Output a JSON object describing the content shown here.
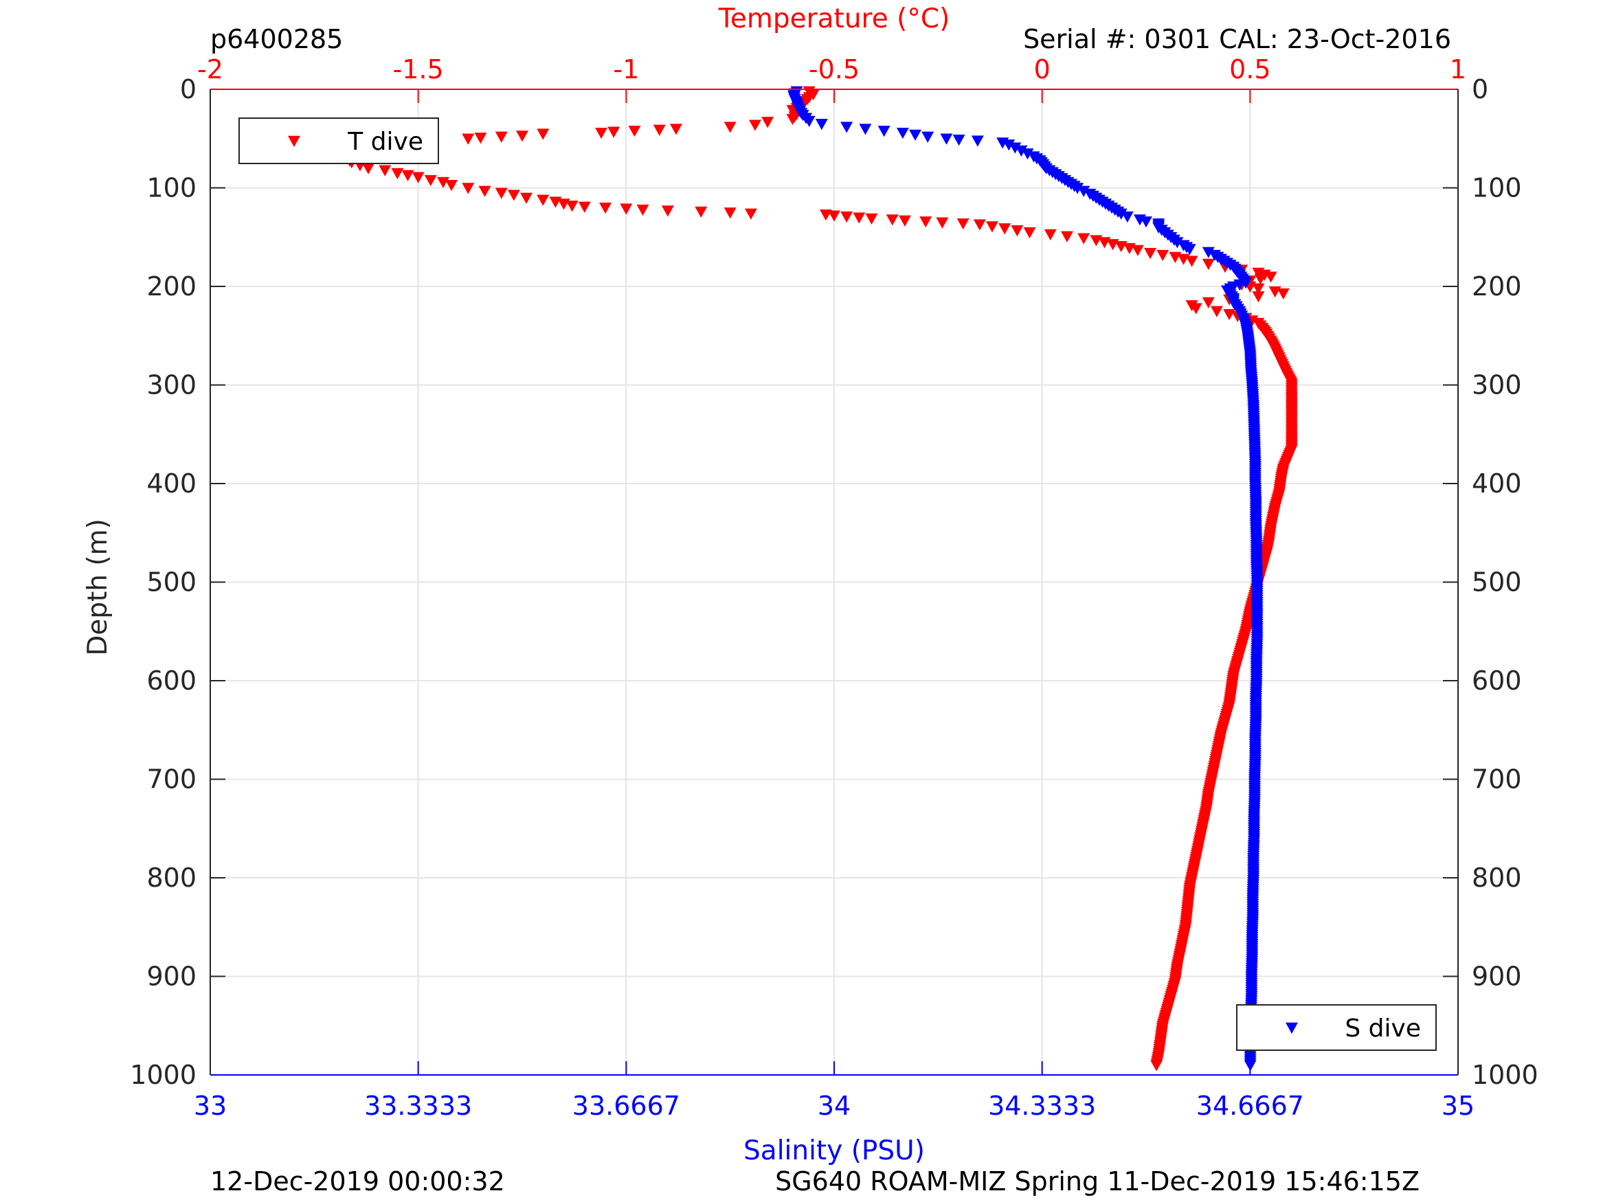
{
  "header": {
    "profile_id": "p6400285",
    "serial_cal": "Serial #: 0301  CAL: 23-Oct-2016"
  },
  "footer": {
    "left": "12-Dec-2019 00:00:32",
    "right": "SG640 ROAM-MIZ Spring 11-Dec-2019 15:46:15Z"
  },
  "colors": {
    "temperature": "#ff0000",
    "salinity": "#0000ff",
    "axis": "#262626",
    "grid": "#e6e6e6",
    "grid_temperature": "#ffd6d6"
  },
  "chart_data": {
    "type": "scatter",
    "grid": true,
    "y_axis": {
      "label": "Depth (m)",
      "range": [
        0,
        1000
      ],
      "reversed": true,
      "ticks": [
        0,
        100,
        200,
        300,
        400,
        500,
        600,
        700,
        800,
        900,
        1000
      ],
      "tick_labels": [
        "0",
        "100",
        "200",
        "300",
        "400",
        "500",
        "600",
        "700",
        "800",
        "900",
        "1000"
      ]
    },
    "x_top": {
      "label": "Temperature (°C)",
      "range": [
        -2,
        1
      ],
      "ticks": [
        -2,
        -1.5,
        -1,
        -0.5,
        0,
        0.5,
        1
      ],
      "tick_labels": [
        "-2",
        "-1.5",
        "-1",
        "-0.5",
        "0",
        "0.5",
        "1"
      ]
    },
    "x_bottom": {
      "label": "Salinity (PSU)",
      "range": [
        33,
        35
      ],
      "ticks": [
        33,
        33.3333,
        33.6667,
        34,
        34.3333,
        34.6667,
        35
      ],
      "tick_labels": [
        "33",
        "33.3333",
        "33.6667",
        "34",
        "34.3333",
        "34.6667",
        "35"
      ]
    },
    "legends": [
      {
        "series": "T dive",
        "placement": "top-left"
      },
      {
        "series": "S dive",
        "placement": "bottom-right"
      }
    ],
    "series": [
      {
        "name": "T dive",
        "axis": "x_top",
        "marker": "triangle-down",
        "points": [
          [
            -0.56,
            2
          ],
          [
            -0.55,
            5
          ],
          [
            -0.56,
            8
          ],
          [
            -0.57,
            12
          ],
          [
            -0.58,
            17
          ],
          [
            -0.6,
            21
          ],
          [
            -0.59,
            25
          ],
          [
            -0.6,
            30
          ],
          [
            -0.66,
            33
          ],
          [
            -0.69,
            36
          ],
          [
            -0.75,
            38
          ],
          [
            -0.88,
            40
          ],
          [
            -0.92,
            41
          ],
          [
            -0.98,
            42
          ],
          [
            -1.03,
            43
          ],
          [
            -1.06,
            44
          ],
          [
            -1.2,
            45
          ],
          [
            -1.25,
            47
          ],
          [
            -1.3,
            48
          ],
          [
            -1.35,
            49
          ],
          [
            -1.38,
            50
          ],
          [
            -1.63,
            52
          ],
          [
            -1.65,
            53
          ],
          [
            -1.66,
            54
          ],
          [
            -1.68,
            55
          ],
          [
            -1.68,
            58
          ],
          [
            -1.69,
            62
          ],
          [
            -1.68,
            66
          ],
          [
            -1.67,
            70
          ],
          [
            -1.66,
            74
          ],
          [
            -1.64,
            77
          ],
          [
            -1.62,
            80
          ],
          [
            -1.58,
            82
          ],
          [
            -1.55,
            85
          ],
          [
            -1.5,
            89
          ],
          [
            -1.47,
            92
          ],
          [
            -1.44,
            94
          ],
          [
            -1.42,
            97
          ],
          [
            -1.38,
            100
          ],
          [
            -1.34,
            103
          ],
          [
            -1.3,
            105
          ],
          [
            -1.27,
            107
          ],
          [
            -1.24,
            110
          ],
          [
            -1.2,
            112
          ],
          [
            -1.17,
            114
          ],
          [
            -1.15,
            116
          ],
          [
            -1.13,
            118
          ],
          [
            -1.1,
            119
          ],
          [
            -1.05,
            120
          ],
          [
            -1.0,
            121
          ],
          [
            -0.96,
            122
          ],
          [
            -0.9,
            123
          ],
          [
            -0.82,
            124
          ],
          [
            -0.75,
            125
          ],
          [
            -0.7,
            126
          ],
          [
            -0.52,
            127
          ],
          [
            -0.5,
            128
          ],
          [
            -0.47,
            129
          ],
          [
            -0.44,
            130
          ],
          [
            -0.41,
            131
          ],
          [
            -0.36,
            132
          ],
          [
            -0.33,
            133
          ],
          [
            -0.28,
            134
          ],
          [
            -0.24,
            135
          ],
          [
            -0.19,
            136
          ],
          [
            -0.15,
            137
          ],
          [
            -0.12,
            139
          ],
          [
            -0.09,
            141
          ],
          [
            -0.06,
            143
          ],
          [
            -0.03,
            145
          ],
          [
            0.02,
            147
          ],
          [
            0.06,
            149
          ],
          [
            0.1,
            151
          ],
          [
            0.13,
            153
          ],
          [
            0.15,
            155
          ],
          [
            0.17,
            157
          ],
          [
            0.19,
            159
          ],
          [
            0.21,
            161
          ],
          [
            0.23,
            163
          ],
          [
            0.26,
            166
          ],
          [
            0.32,
            170
          ],
          [
            0.36,
            174
          ],
          [
            0.4,
            177
          ],
          [
            0.44,
            180
          ],
          [
            0.48,
            183
          ],
          [
            0.52,
            186
          ],
          [
            0.55,
            190
          ],
          [
            0.5,
            194
          ],
          [
            0.48,
            198
          ],
          [
            0.52,
            202
          ],
          [
            0.56,
            205
          ],
          [
            0.58,
            207
          ],
          [
            0.52,
            210
          ],
          [
            0.45,
            213
          ],
          [
            0.4,
            216
          ],
          [
            0.36,
            219
          ],
          [
            0.37,
            222
          ],
          [
            0.42,
            225
          ],
          [
            0.45,
            228
          ],
          [
            0.49,
            232
          ],
          [
            0.52,
            237
          ],
          [
            0.53,
            242
          ],
          [
            0.54,
            248
          ],
          [
            0.55,
            255
          ],
          [
            0.56,
            263
          ],
          [
            0.57,
            272
          ],
          [
            0.58,
            281
          ],
          [
            0.59,
            290
          ],
          [
            0.6,
            298
          ],
          [
            0.6,
            310
          ],
          [
            0.6,
            325
          ],
          [
            0.6,
            340
          ],
          [
            0.6,
            355
          ],
          [
            0.6,
            365
          ],
          [
            0.59,
            375
          ],
          [
            0.58,
            385
          ],
          [
            0.575,
            395
          ],
          [
            0.57,
            410
          ],
          [
            0.56,
            425
          ],
          [
            0.55,
            445
          ],
          [
            0.545,
            460
          ],
          [
            0.54,
            470
          ],
          [
            0.53,
            485
          ],
          [
            0.52,
            500
          ],
          [
            0.51,
            515
          ],
          [
            0.5,
            530
          ],
          [
            0.49,
            550
          ],
          [
            0.48,
            565
          ],
          [
            0.47,
            580
          ],
          [
            0.46,
            595
          ],
          [
            0.455,
            610
          ],
          [
            0.45,
            625
          ],
          [
            0.44,
            640
          ],
          [
            0.43,
            655
          ],
          [
            0.42,
            675
          ],
          [
            0.41,
            695
          ],
          [
            0.4,
            715
          ],
          [
            0.395,
            730
          ],
          [
            0.385,
            750
          ],
          [
            0.375,
            770
          ],
          [
            0.365,
            790
          ],
          [
            0.355,
            810
          ],
          [
            0.35,
            830
          ],
          [
            0.345,
            850
          ],
          [
            0.335,
            870
          ],
          [
            0.325,
            890
          ],
          [
            0.32,
            905
          ],
          [
            0.31,
            920
          ],
          [
            0.3,
            935
          ],
          [
            0.29,
            950
          ],
          [
            0.285,
            965
          ],
          [
            0.28,
            980
          ],
          [
            0.275,
            990
          ]
        ]
      },
      {
        "name": "S dive",
        "axis": "x_bottom",
        "marker": "triangle-down",
        "points": [
          [
            33.94,
            2
          ],
          [
            33.935,
            6
          ],
          [
            33.937,
            10
          ],
          [
            33.94,
            14
          ],
          [
            33.942,
            18
          ],
          [
            33.945,
            22
          ],
          [
            33.95,
            26
          ],
          [
            33.955,
            29
          ],
          [
            33.96,
            32
          ],
          [
            33.98,
            35
          ],
          [
            34.02,
            38
          ],
          [
            34.05,
            40
          ],
          [
            34.08,
            42
          ],
          [
            34.11,
            44
          ],
          [
            34.13,
            46
          ],
          [
            34.15,
            48
          ],
          [
            34.18,
            50
          ],
          [
            34.2,
            51
          ],
          [
            34.23,
            52
          ],
          [
            34.27,
            54
          ],
          [
            34.28,
            56
          ],
          [
            34.29,
            59
          ],
          [
            34.3,
            62
          ],
          [
            34.31,
            65
          ],
          [
            34.32,
            68
          ],
          [
            34.33,
            72
          ],
          [
            34.335,
            76
          ],
          [
            34.34,
            80
          ],
          [
            34.35,
            84
          ],
          [
            34.36,
            88
          ],
          [
            34.37,
            92
          ],
          [
            34.38,
            96
          ],
          [
            34.39,
            100
          ],
          [
            34.4,
            103
          ],
          [
            34.41,
            106
          ],
          [
            34.42,
            110
          ],
          [
            34.43,
            114
          ],
          [
            34.44,
            118
          ],
          [
            34.45,
            122
          ],
          [
            34.46,
            126
          ],
          [
            34.47,
            129
          ],
          [
            34.49,
            132
          ],
          [
            34.5,
            134
          ],
          [
            34.52,
            136
          ],
          [
            34.52,
            140
          ],
          [
            34.53,
            145
          ],
          [
            34.54,
            150
          ],
          [
            34.55,
            155
          ],
          [
            34.56,
            158
          ],
          [
            34.57,
            162
          ],
          [
            34.6,
            165
          ],
          [
            34.61,
            168
          ],
          [
            34.62,
            172
          ],
          [
            34.63,
            176
          ],
          [
            34.64,
            180
          ],
          [
            34.645,
            184
          ],
          [
            34.65,
            188
          ],
          [
            34.655,
            192
          ],
          [
            34.66,
            196
          ],
          [
            34.64,
            200
          ],
          [
            34.63,
            204
          ],
          [
            34.635,
            208
          ],
          [
            34.64,
            212
          ],
          [
            34.64,
            216
          ],
          [
            34.645,
            220
          ],
          [
            34.65,
            225
          ],
          [
            34.655,
            232
          ],
          [
            34.66,
            240
          ],
          [
            34.663,
            250
          ],
          [
            34.665,
            260
          ],
          [
            34.667,
            270
          ],
          [
            34.668,
            285
          ],
          [
            34.67,
            300
          ],
          [
            34.672,
            320
          ],
          [
            34.673,
            340
          ],
          [
            34.674,
            360
          ],
          [
            34.675,
            380
          ],
          [
            34.675,
            400
          ],
          [
            34.676,
            420
          ],
          [
            34.676,
            440
          ],
          [
            34.677,
            460
          ],
          [
            34.677,
            480
          ],
          [
            34.678,
            500
          ],
          [
            34.678,
            520
          ],
          [
            34.678,
            540
          ],
          [
            34.678,
            560
          ],
          [
            34.677,
            580
          ],
          [
            34.677,
            600
          ],
          [
            34.676,
            620
          ],
          [
            34.676,
            640
          ],
          [
            34.675,
            660
          ],
          [
            34.675,
            680
          ],
          [
            34.674,
            700
          ],
          [
            34.674,
            720
          ],
          [
            34.673,
            740
          ],
          [
            34.673,
            760
          ],
          [
            34.672,
            780
          ],
          [
            34.672,
            800
          ],
          [
            34.671,
            820
          ],
          [
            34.671,
            840
          ],
          [
            34.67,
            860
          ],
          [
            34.67,
            880
          ],
          [
            34.669,
            900
          ],
          [
            34.669,
            920
          ],
          [
            34.668,
            940
          ],
          [
            34.668,
            960
          ],
          [
            34.667,
            975
          ],
          [
            34.667,
            990
          ]
        ]
      }
    ]
  }
}
